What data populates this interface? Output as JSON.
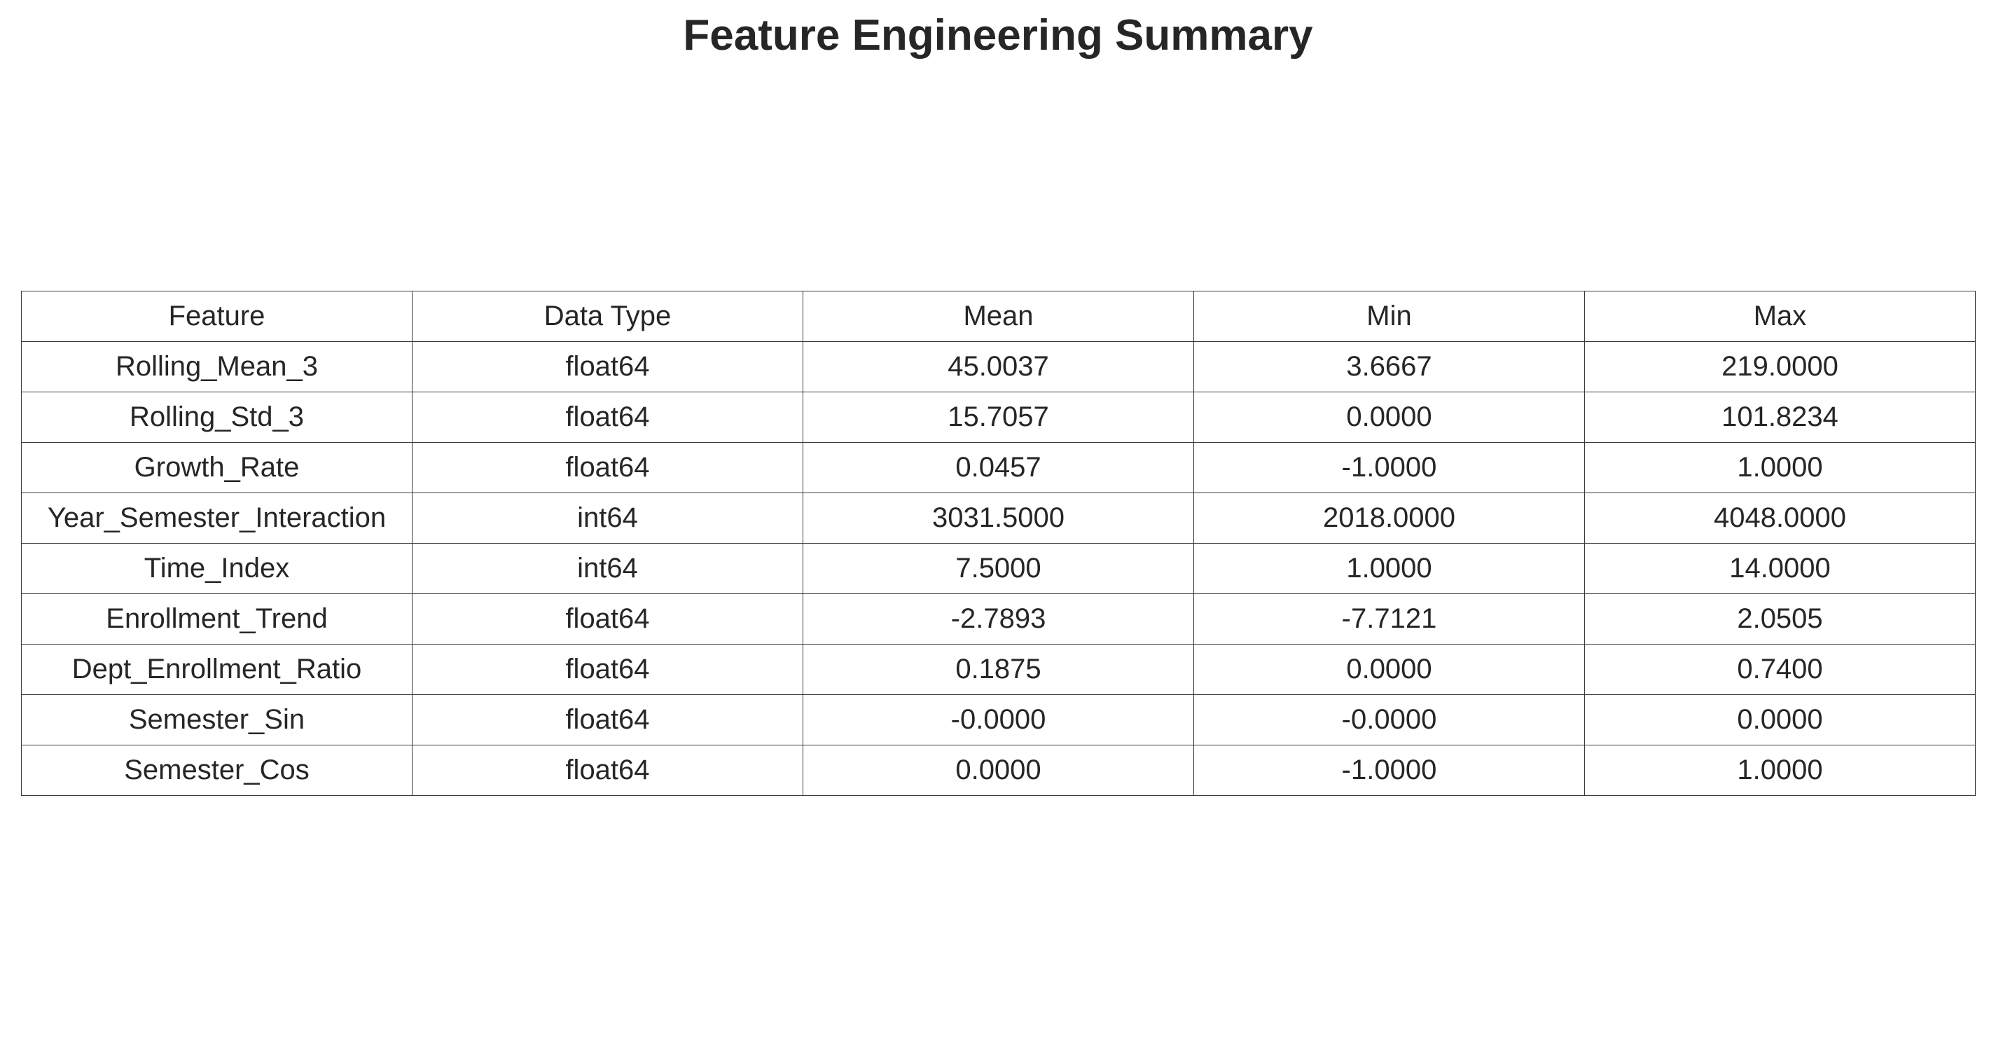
{
  "chart_data": {
    "type": "table",
    "title": "Feature Engineering Summary",
    "columns": [
      "Feature",
      "Data Type",
      "Mean",
      "Min",
      "Max"
    ],
    "rows": [
      [
        "Rolling_Mean_3",
        "float64",
        "45.0037",
        "3.6667",
        "219.0000"
      ],
      [
        "Rolling_Std_3",
        "float64",
        "15.7057",
        "0.0000",
        "101.8234"
      ],
      [
        "Growth_Rate",
        "float64",
        "0.0457",
        "-1.0000",
        "1.0000"
      ],
      [
        "Year_Semester_Interaction",
        "int64",
        "3031.5000",
        "2018.0000",
        "4048.0000"
      ],
      [
        "Time_Index",
        "int64",
        "7.5000",
        "1.0000",
        "14.0000"
      ],
      [
        "Enrollment_Trend",
        "float64",
        "-2.7893",
        "-7.7121",
        "2.0505"
      ],
      [
        "Dept_Enrollment_Ratio",
        "float64",
        "0.1875",
        "0.0000",
        "0.7400"
      ],
      [
        "Semester_Sin",
        "float64",
        "-0.0000",
        "-0.0000",
        "0.0000"
      ],
      [
        "Semester_Cos",
        "float64",
        "0.0000",
        "-1.0000",
        "1.0000"
      ]
    ],
    "colors": {
      "text": "#262626",
      "border": "#3a3a3a",
      "background": "#ffffff"
    }
  }
}
